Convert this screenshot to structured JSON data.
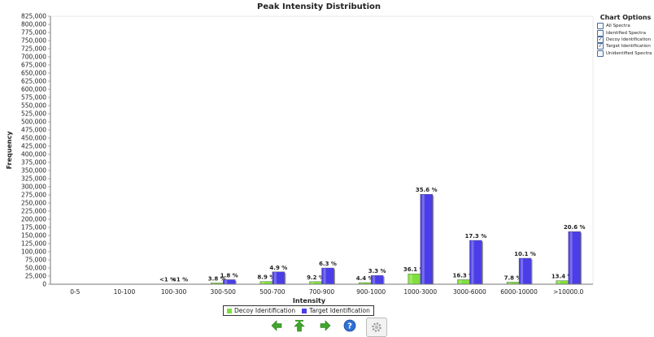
{
  "chart_data": {
    "type": "bar",
    "title": "Peak Intensity Distribution",
    "xlabel": "Intensity",
    "ylabel": "Frequency",
    "ylim": [
      0,
      825000
    ],
    "ytick_step": 25000,
    "categories": [
      "0-5",
      "10-100",
      "100-300",
      "300-500",
      "500-700",
      "700-900",
      "900-1000",
      "1000-3000",
      "3000-6000",
      "6000-10000",
      ">10000.0"
    ],
    "series": [
      {
        "name": "Decoy Identification",
        "color": "#7fe03c",
        "values": [
          0,
          0,
          800,
          4000,
          8500,
          8000,
          5000,
          32000,
          14000,
          6500,
          11000
        ],
        "labels": [
          "",
          "",
          "<1 %",
          "3.8 %",
          "8.9 %",
          "9.2 %",
          "4.4 %",
          "36.1 %",
          "16.3 %",
          "7.8 %",
          "13.4 %"
        ]
      },
      {
        "name": "Target Identification",
        "color": "#4b3ee8",
        "values": [
          0,
          0,
          1000,
          14000,
          38000,
          50000,
          27000,
          277000,
          135000,
          80000,
          162000
        ],
        "labels": [
          "",
          "",
          "<1 %",
          "1.8 %",
          "4.9 %",
          "6.3 %",
          "3.3 %",
          "35.6 %",
          "17.3 %",
          "10.1 %",
          "20.6 %"
        ]
      }
    ],
    "grid": false,
    "legend_position": "bottom"
  },
  "chart_options": {
    "title": "Chart Options",
    "items": [
      {
        "label": "All Spectra",
        "checked": false
      },
      {
        "label": "Identified Spectra",
        "checked": false
      },
      {
        "label": "Decoy Identification",
        "checked": true
      },
      {
        "label": "Target Identification",
        "checked": true
      },
      {
        "label": "Unidentified Spectra",
        "checked": false
      }
    ]
  },
  "toolbar": {
    "icons": [
      "arrow-left-icon",
      "arrow-up-icon",
      "arrow-right-icon",
      "help-icon",
      "settings-icon"
    ]
  }
}
